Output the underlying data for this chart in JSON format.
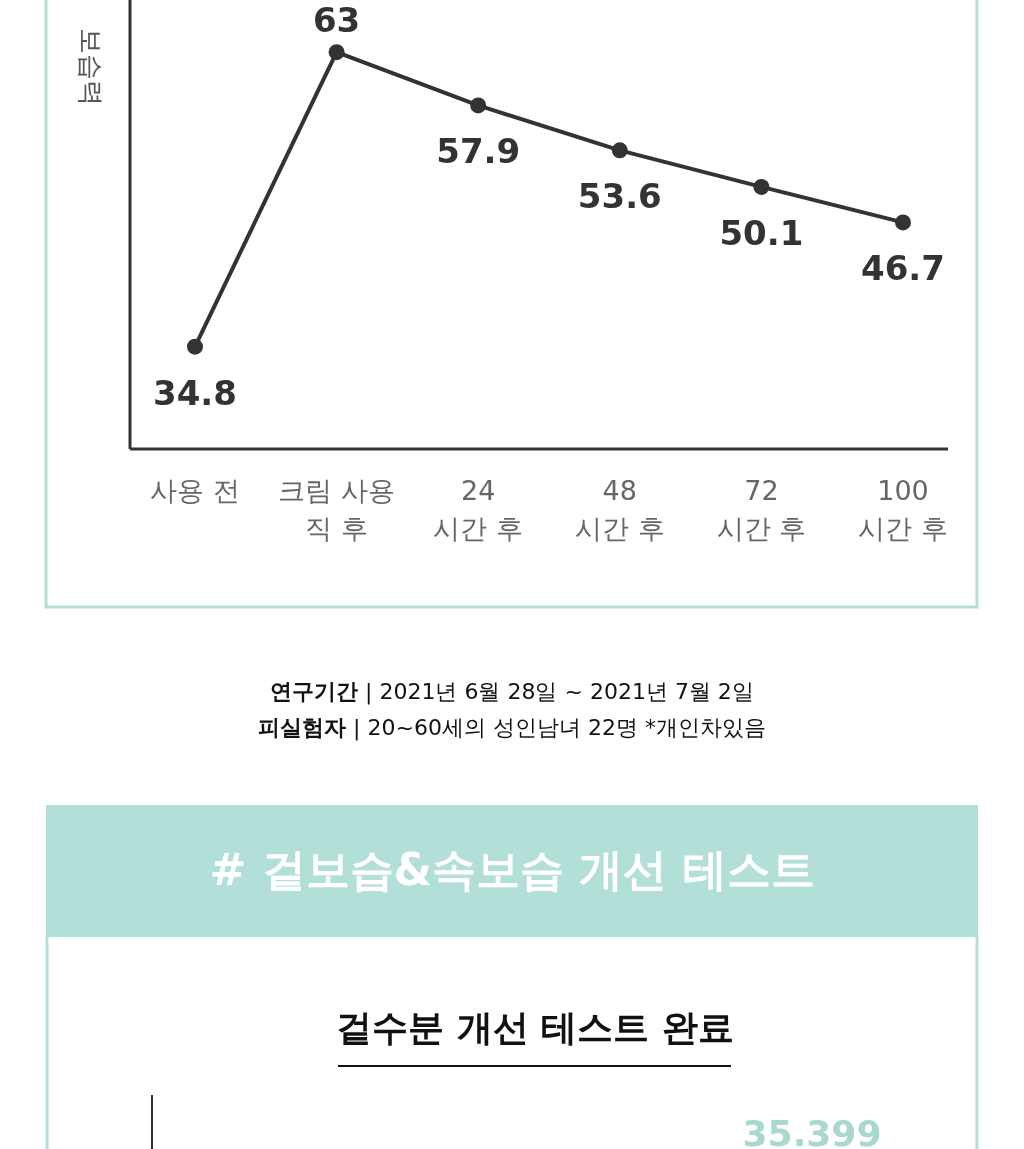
{
  "chart_data": [
    {
      "type": "line",
      "ylabel": "보습력",
      "categories": [
        "사용 전",
        "크림 사용 직 후",
        "24 시간 후",
        "48 시간 후",
        "72 시간 후",
        "100 시간 후"
      ],
      "values": [
        34.8,
        63,
        57.9,
        53.6,
        50.1,
        46.7
      ],
      "color": "#333333",
      "marker": "circle",
      "data_labels": true,
      "ylim": [
        25,
        68
      ],
      "tick_labels": "x",
      "annotations": [
        "**연구기간** | 2021년 6월 28일 ~ 2021년 7월 2일",
        "**피실험자** | 20~60세의 성인남녀 22명    *개인차있음"
      ]
    },
    {
      "type": "other",
      "title": "# 겉보습&속보습 개선 테스트",
      "subtitle": "겉수분 개선 테스트 완료",
      "annotations": [
        "35.399"
      ]
    }
  ]
}
